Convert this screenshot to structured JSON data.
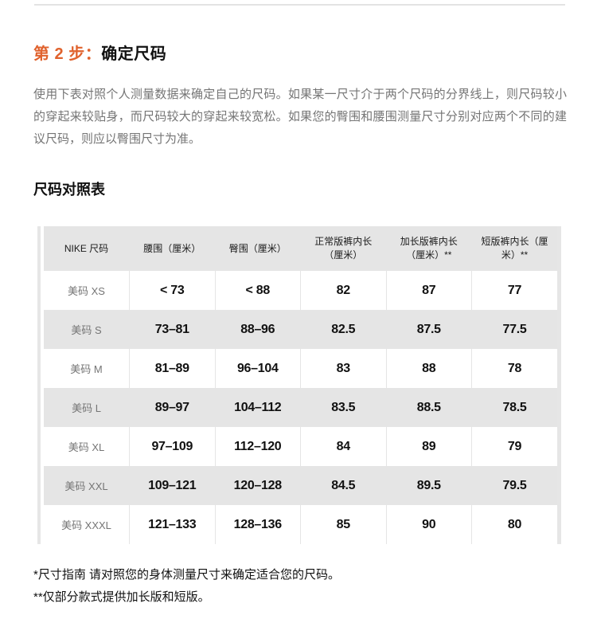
{
  "heading": {
    "prefix": "第 2 步：",
    "title": "确定尺码"
  },
  "intro": {
    "text": "使用下表对照个人测量数据来确定自己的尺码。如果某一尺寸介于两个尺码的分界线上，则尺码较小的穿起来较贴身，而尺码较大的穿起来较宽松。如果您的臀围和腰围测量尺寸分别对应两个不同的建议尺码，则应以臀围尺寸为准。"
  },
  "size_table": {
    "title": "尺码对照表",
    "columns": [
      "NIKE 尺码",
      "腰围（厘米）",
      "臀围（厘米）",
      "正常版裤内长（厘米）",
      "加长版裤内长（厘米）**",
      "短版裤内长（厘米）**"
    ],
    "rows": [
      {
        "size": "美码 XS",
        "values": [
          "< 73",
          "< 88",
          "82",
          "87",
          "77"
        ]
      },
      {
        "size": "美码 S",
        "values": [
          "73–81",
          "88–96",
          "82.5",
          "87.5",
          "77.5"
        ]
      },
      {
        "size": "美码 M",
        "values": [
          "81–89",
          "96–104",
          "83",
          "88",
          "78"
        ]
      },
      {
        "size": "美码 L",
        "values": [
          "89–97",
          "104–112",
          "83.5",
          "88.5",
          "78.5"
        ]
      },
      {
        "size": "美码 XL",
        "values": [
          "97–109",
          "112–120",
          "84",
          "89",
          "79"
        ]
      },
      {
        "size": "美码 XXL",
        "values": [
          "109–121",
          "120–128",
          "84.5",
          "89.5",
          "79.5"
        ]
      },
      {
        "size": "美码 XXXL",
        "values": [
          "121–133",
          "128–136",
          "85",
          "90",
          "80"
        ]
      }
    ]
  },
  "notes": [
    "*尺寸指南 请对照您的身体测量尺寸来确定适合您的尺码。",
    "**仅部分款式提供加长版和短版。"
  ],
  "colors": {
    "accent_orange": "#e0622d",
    "row_alt_gray": "#e5e5e5",
    "header_gray": "#e5e5e5",
    "body_text_gray": "#757575",
    "text_black": "#111111",
    "divider_gray": "#e3e3e3"
  }
}
